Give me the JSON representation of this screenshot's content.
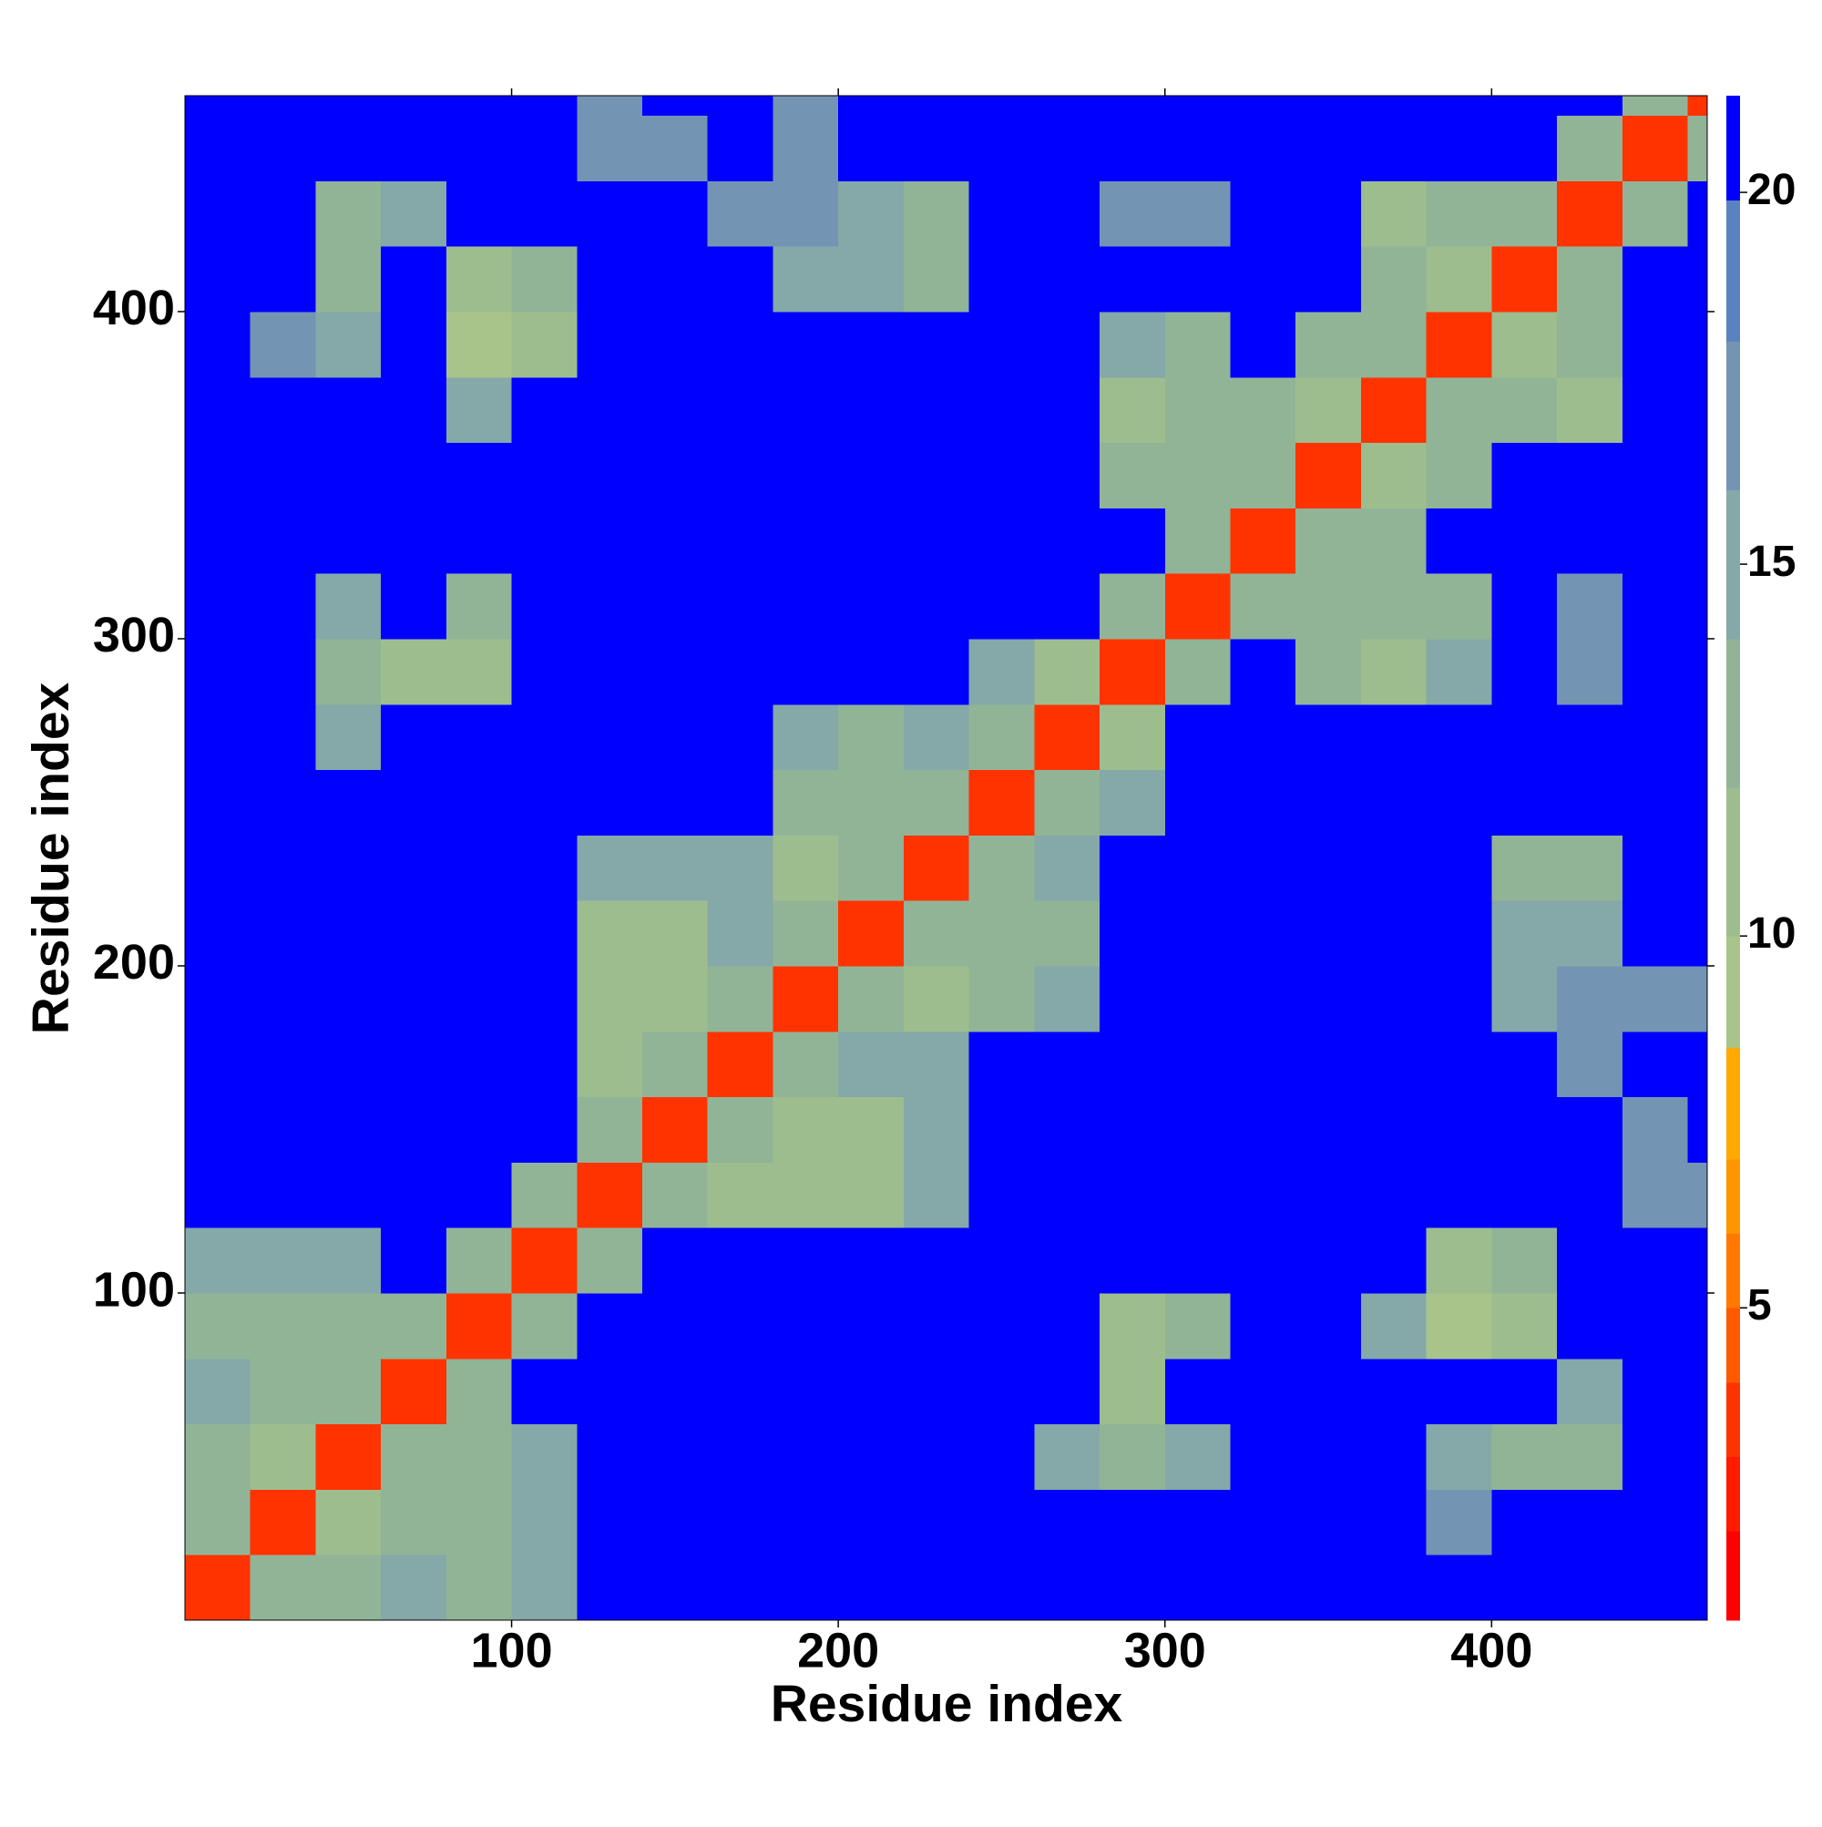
{
  "chart_data": {
    "type": "heatmap",
    "xlabel": "Residue index",
    "ylabel": "Residue index",
    "xbins": [
      0,
      20,
      40,
      60,
      80,
      100,
      120,
      140,
      160,
      180,
      200,
      220,
      240,
      260,
      280,
      300,
      320,
      340,
      360,
      380,
      400,
      420,
      440,
      460,
      466
    ],
    "ybins": [
      0,
      20,
      40,
      60,
      80,
      100,
      120,
      140,
      160,
      180,
      200,
      220,
      240,
      260,
      280,
      300,
      320,
      340,
      360,
      380,
      400,
      420,
      440,
      460,
      466
    ],
    "xlim": [
      0,
      466
    ],
    "ylim": [
      0,
      466
    ],
    "xticks": [
      100,
      200,
      300,
      400
    ],
    "yticks": [
      100,
      200,
      300,
      400
    ],
    "zlim": [
      0.8,
      21.3
    ],
    "zticks": [
      5,
      10,
      15,
      20
    ],
    "color_levels": [
      2,
      3,
      4,
      5,
      6,
      7,
      8.5,
      10,
      12,
      14,
      16,
      18,
      19.9
    ],
    "colors": [
      "#ff0000",
      "#ff1a00",
      "#ff3300",
      "#ff5a00",
      "#ff7800",
      "#ff9600",
      "#ffaa00",
      "#a9c48a",
      "#9dbd8f",
      "#91b497",
      "#85a8a8",
      "#7494b4",
      "#5a82c0",
      "#0000ff"
    ],
    "z": [
      [
        3.8,
        12,
        13,
        14,
        12,
        14,
        21,
        21,
        21,
        21,
        21,
        21,
        21,
        21,
        21,
        21,
        21,
        21,
        21,
        21,
        21,
        21,
        21,
        21
      ],
      [
        12,
        3.8,
        11,
        12,
        12,
        14,
        21,
        21,
        21,
        21,
        21,
        21,
        21,
        21,
        21,
        21,
        21,
        21,
        21,
        16,
        21,
        21,
        21,
        21
      ],
      [
        13,
        11,
        3.8,
        13,
        12,
        14,
        21,
        21,
        21,
        21,
        21,
        21,
        21,
        14,
        12,
        15,
        21,
        21,
        21,
        14,
        13,
        12,
        21,
        21
      ],
      [
        14,
        12,
        13,
        3.8,
        12,
        21,
        21,
        21,
        21,
        21,
        21,
        21,
        21,
        21,
        11,
        21,
        21,
        21,
        21,
        21,
        21,
        15,
        21,
        21
      ],
      [
        12,
        12,
        12,
        12,
        3.8,
        13,
        21,
        21,
        21,
        21,
        21,
        21,
        21,
        21,
        11,
        12,
        21,
        21,
        15,
        9,
        10,
        21,
        21,
        21
      ],
      [
        14,
        14,
        14,
        21,
        13,
        3.8,
        13,
        21,
        21,
        21,
        21,
        21,
        21,
        21,
        21,
        21,
        21,
        21,
        21,
        11,
        13,
        21,
        21,
        21
      ],
      [
        21,
        21,
        21,
        21,
        21,
        13,
        3.8,
        13,
        11,
        10,
        11,
        15,
        21,
        21,
        21,
        21,
        21,
        21,
        21,
        21,
        21,
        21,
        16,
        17
      ],
      [
        21,
        21,
        21,
        21,
        21,
        21,
        13,
        3.8,
        12,
        11,
        11,
        14,
        21,
        21,
        21,
        21,
        21,
        21,
        21,
        21,
        21,
        21,
        17,
        21
      ],
      [
        21,
        21,
        21,
        21,
        21,
        21,
        11,
        12,
        3.8,
        13,
        14,
        14,
        21,
        21,
        21,
        21,
        21,
        21,
        21,
        21,
        21,
        16,
        21,
        21
      ],
      [
        21,
        21,
        21,
        21,
        21,
        21,
        10,
        11,
        13,
        3.8,
        13,
        11,
        12,
        14,
        21,
        21,
        21,
        21,
        21,
        21,
        15,
        16,
        17,
        17
      ],
      [
        21,
        21,
        21,
        21,
        21,
        21,
        11,
        11,
        14,
        13,
        3.8,
        13,
        12,
        13,
        21,
        21,
        21,
        21,
        21,
        21,
        15,
        14,
        21,
        21
      ],
      [
        21,
        21,
        21,
        21,
        21,
        21,
        15,
        14,
        14,
        11,
        13,
        3.8,
        13,
        14,
        21,
        21,
        21,
        21,
        21,
        21,
        13,
        12,
        21,
        21
      ],
      [
        21,
        21,
        21,
        21,
        21,
        21,
        21,
        21,
        21,
        12,
        12,
        13,
        3.8,
        13,
        15,
        21,
        21,
        21,
        21,
        21,
        21,
        21,
        21,
        21
      ],
      [
        21,
        21,
        14,
        21,
        21,
        21,
        21,
        21,
        21,
        14,
        13,
        14,
        13,
        3.8,
        11,
        21,
        21,
        21,
        21,
        21,
        21,
        21,
        21,
        21
      ],
      [
        21,
        21,
        12,
        11,
        11,
        21,
        21,
        21,
        21,
        21,
        21,
        21,
        15,
        11,
        3.8,
        13,
        21,
        13,
        11,
        14,
        21,
        17,
        21,
        21
      ],
      [
        21,
        21,
        15,
        21,
        12,
        21,
        21,
        21,
        21,
        21,
        21,
        21,
        21,
        21,
        13,
        3.8,
        13,
        13,
        12,
        12,
        21,
        17,
        21,
        21
      ],
      [
        21,
        21,
        21,
        21,
        21,
        21,
        21,
        21,
        21,
        21,
        21,
        21,
        21,
        21,
        21,
        13,
        3.8,
        12,
        13,
        21,
        21,
        21,
        21,
        21
      ],
      [
        21,
        21,
        21,
        21,
        21,
        21,
        21,
        21,
        21,
        21,
        21,
        21,
        21,
        21,
        13,
        13,
        12,
        3.8,
        11,
        13,
        21,
        21,
        21,
        21
      ],
      [
        21,
        21,
        21,
        21,
        15,
        21,
        21,
        21,
        21,
        21,
        21,
        21,
        21,
        21,
        11,
        12,
        13,
        11,
        3.8,
        13,
        13,
        10,
        21,
        21
      ],
      [
        21,
        16,
        14,
        21,
        9,
        11,
        21,
        21,
        21,
        21,
        21,
        21,
        21,
        21,
        14,
        12,
        21,
        13,
        13,
        3.8,
        11,
        13,
        21,
        21
      ],
      [
        21,
        21,
        13,
        21,
        10,
        13,
        21,
        21,
        21,
        15,
        15,
        13,
        21,
        21,
        21,
        21,
        21,
        21,
        13,
        11,
        3.8,
        12,
        21,
        21
      ],
      [
        21,
        21,
        12,
        15,
        21,
        21,
        21,
        21,
        16,
        16,
        14,
        12,
        21,
        21,
        17,
        17,
        21,
        21,
        10,
        13,
        12,
        3.8,
        12,
        21
      ],
      [
        21,
        21,
        21,
        21,
        21,
        21,
        16,
        17,
        21,
        17,
        21,
        21,
        21,
        21,
        21,
        21,
        21,
        21,
        21,
        21,
        21,
        12,
        3.8,
        12
      ],
      [
        21,
        21,
        21,
        21,
        21,
        21,
        17,
        21,
        21,
        17,
        21,
        21,
        21,
        21,
        21,
        21,
        21,
        21,
        21,
        21,
        21,
        21,
        12,
        3.8
      ]
    ]
  }
}
